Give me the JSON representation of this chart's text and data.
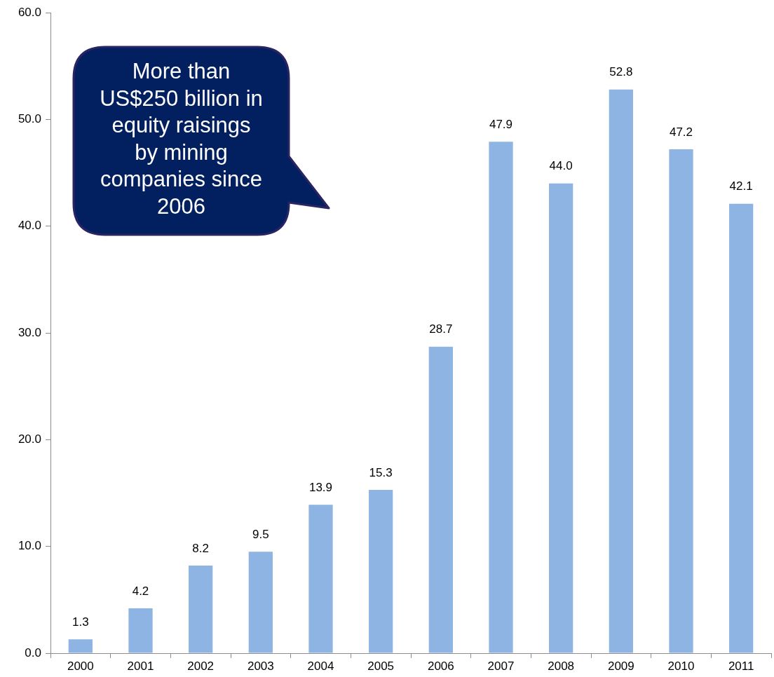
{
  "chart_data": {
    "type": "bar",
    "categories": [
      "2000",
      "2001",
      "2002",
      "2003",
      "2004",
      "2005",
      "2006",
      "2007",
      "2008",
      "2009",
      "2010",
      "2011"
    ],
    "values": [
      1.3,
      4.2,
      8.2,
      9.5,
      13.9,
      15.3,
      28.7,
      47.9,
      44.0,
      52.8,
      47.2,
      42.1
    ],
    "value_labels": [
      "1.3",
      "4.2",
      "8.2",
      "9.5",
      "13.9",
      "15.3",
      "28.7",
      "47.9",
      "44.0",
      "52.8",
      "47.2",
      "42.1"
    ],
    "color": "#8db4e2",
    "ylim": [
      0,
      60
    ],
    "yticks": [
      {
        "value": 0,
        "label": "0.0"
      },
      {
        "value": 10,
        "label": "10.0"
      },
      {
        "value": 20,
        "label": "20.0"
      },
      {
        "value": 30,
        "label": "30.0"
      },
      {
        "value": 40,
        "label": "40.0"
      },
      {
        "value": 50,
        "label": "50.0"
      },
      {
        "value": 60,
        "label": "60.0"
      }
    ],
    "annotations": [
      "More than US$250 billion in equity raisings by mining companies since 2006"
    ]
  }
}
